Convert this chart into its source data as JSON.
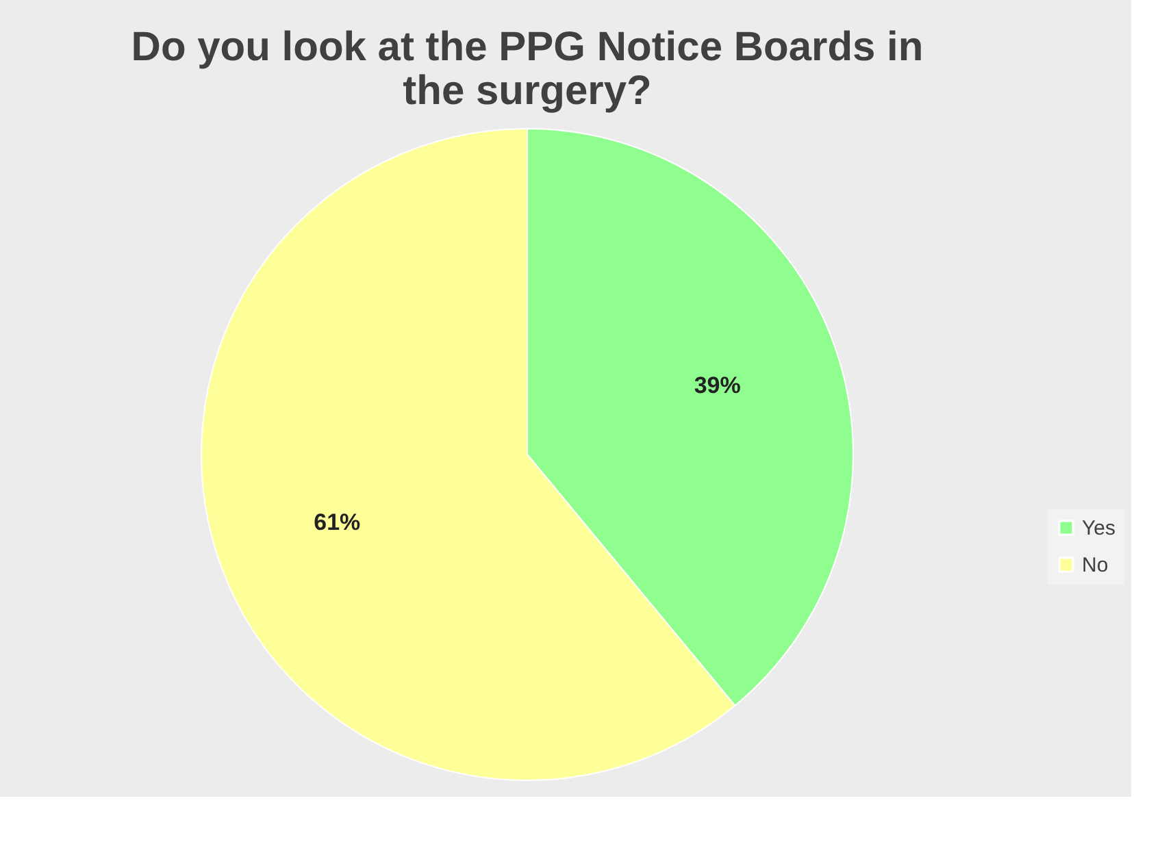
{
  "chart_data": {
    "type": "pie",
    "title": "Do you look at the PPG Notice Boards in the surgery?",
    "categories": [
      "Yes",
      "No"
    ],
    "values": [
      39,
      61
    ],
    "colors": [
      "#8ffe8e",
      "#ffff99"
    ],
    "value_labels": [
      "39%",
      "61%"
    ],
    "legend": "right"
  }
}
